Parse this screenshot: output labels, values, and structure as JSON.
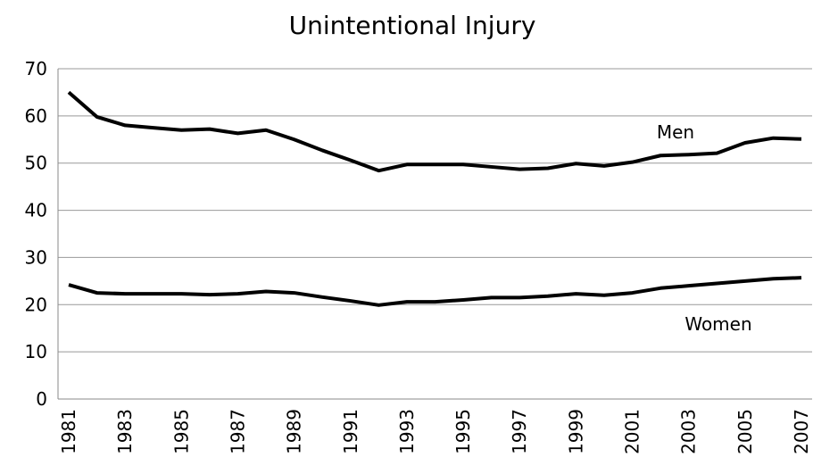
{
  "chart_data": {
    "type": "line",
    "title": "Unintentional Injury",
    "categories": [
      "1981",
      null,
      "1983",
      null,
      "1985",
      null,
      "1987",
      null,
      "1989",
      null,
      "1991",
      null,
      "1993",
      null,
      "1995",
      null,
      "1997",
      null,
      "1999",
      null,
      "2001",
      null,
      "2003",
      null,
      "2005",
      null,
      "2007"
    ],
    "series": [
      {
        "name": "Men",
        "color": "#000000",
        "values": [
          65,
          59.8,
          58,
          57.5,
          57,
          57.2,
          56.3,
          57,
          55,
          52.7,
          50.6,
          48.4,
          49.7,
          49.7,
          49.7,
          49.2,
          48.7,
          48.9,
          49.9,
          49.4,
          50.2,
          51.6,
          51.8,
          52.1,
          54.3,
          55.3,
          55.1
        ]
      },
      {
        "name": "Women",
        "color": "#000000",
        "values": [
          24.2,
          22.5,
          22.3,
          22.3,
          22.3,
          22.1,
          22.3,
          22.8,
          22.5,
          21.6,
          20.8,
          19.9,
          20.6,
          20.6,
          21.0,
          21.5,
          21.5,
          21.8,
          22.3,
          22.0,
          22.5,
          23.5,
          24.0,
          24.5,
          25.0,
          25.5,
          25.7
        ]
      }
    ],
    "ylim": [
      0,
      70
    ],
    "yticks": [
      0,
      10,
      20,
      30,
      40,
      50,
      60,
      70
    ],
    "grid": true
  }
}
